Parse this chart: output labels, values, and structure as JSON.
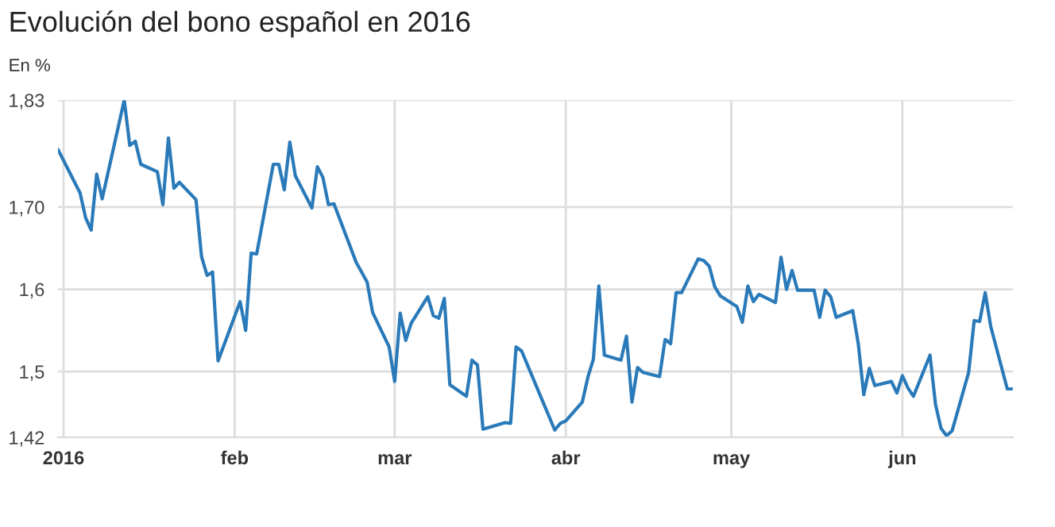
{
  "chart_data": {
    "type": "line",
    "title": "Evolución del bono español en 2016",
    "ylabel": "En %",
    "x": [
      "2015-12-31",
      "2016-01-04",
      "2016-01-05",
      "2016-01-06",
      "2016-01-07",
      "2016-01-08",
      "2016-01-12",
      "2016-01-13",
      "2016-01-14",
      "2016-01-15",
      "2016-01-18",
      "2016-01-19",
      "2016-01-20",
      "2016-01-21",
      "2016-01-22",
      "2016-01-25",
      "2016-01-26",
      "2016-01-27",
      "2016-01-28",
      "2016-01-29",
      "2016-02-02",
      "2016-02-03",
      "2016-02-04",
      "2016-02-05",
      "2016-02-08",
      "2016-02-09",
      "2016-02-10",
      "2016-02-11",
      "2016-02-12",
      "2016-02-15",
      "2016-02-16",
      "2016-02-17",
      "2016-02-18",
      "2016-02-19",
      "2016-02-22",
      "2016-02-23",
      "2016-02-24",
      "2016-02-25",
      "2016-02-26",
      "2016-02-29",
      "2016-03-01",
      "2016-03-02",
      "2016-03-03",
      "2016-03-04",
      "2016-03-07",
      "2016-03-08",
      "2016-03-09",
      "2016-03-10",
      "2016-03-11",
      "2016-03-14",
      "2016-03-15",
      "2016-03-16",
      "2016-03-17",
      "2016-03-21",
      "2016-03-22",
      "2016-03-23",
      "2016-03-24",
      "2016-03-30",
      "2016-03-31",
      "2016-04-01",
      "2016-04-04",
      "2016-04-05",
      "2016-04-06",
      "2016-04-07",
      "2016-04-08",
      "2016-04-11",
      "2016-04-12",
      "2016-04-13",
      "2016-04-14",
      "2016-04-15",
      "2016-04-18",
      "2016-04-19",
      "2016-04-20",
      "2016-04-21",
      "2016-04-22",
      "2016-04-25",
      "2016-04-26",
      "2016-04-27",
      "2016-04-28",
      "2016-04-29",
      "2016-05-02",
      "2016-05-03",
      "2016-05-04",
      "2016-05-05",
      "2016-05-06",
      "2016-05-09",
      "2016-05-10",
      "2016-05-11",
      "2016-05-12",
      "2016-05-13",
      "2016-05-16",
      "2016-05-17",
      "2016-05-18",
      "2016-05-19",
      "2016-05-20",
      "2016-05-23",
      "2016-05-24",
      "2016-05-25",
      "2016-05-26",
      "2016-05-27",
      "2016-05-30",
      "2016-05-31",
      "2016-06-01",
      "2016-06-02",
      "2016-06-03",
      "2016-06-06",
      "2016-06-07",
      "2016-06-08",
      "2016-06-09",
      "2016-06-10",
      "2016-06-13",
      "2016-06-14",
      "2016-06-15",
      "2016-06-16",
      "2016-06-17",
      "2016-06-20",
      "2016-06-21"
    ],
    "series": [
      {
        "color": "#2a7ab9",
        "values": [
          1.77,
          1.717,
          1.687,
          1.672,
          1.74,
          1.71,
          1.83,
          1.775,
          1.78,
          1.752,
          1.743,
          1.703,
          1.784,
          1.723,
          1.73,
          1.709,
          1.64,
          1.617,
          1.621,
          1.513,
          1.585,
          1.55,
          1.644,
          1.643,
          1.752,
          1.752,
          1.721,
          1.779,
          1.738,
          1.699,
          1.749,
          1.736,
          1.703,
          1.704,
          1.651,
          1.633,
          1.621,
          1.609,
          1.572,
          1.53,
          1.488,
          1.571,
          1.538,
          1.559,
          1.591,
          1.568,
          1.565,
          1.589,
          1.484,
          1.47,
          1.514,
          1.508,
          1.43,
          1.438,
          1.437,
          1.53,
          1.525,
          1.429,
          1.437,
          1.44,
          1.463,
          1.493,
          1.515,
          1.604,
          1.52,
          1.514,
          1.543,
          1.463,
          1.505,
          1.499,
          1.494,
          1.539,
          1.534,
          1.596,
          1.596,
          1.637,
          1.635,
          1.628,
          1.603,
          1.592,
          1.579,
          1.56,
          1.604,
          1.585,
          1.594,
          1.584,
          1.639,
          1.6,
          1.623,
          1.599,
          1.599,
          1.566,
          1.599,
          1.591,
          1.566,
          1.574,
          1.534,
          1.472,
          1.504,
          1.483,
          1.488,
          1.474,
          1.495,
          1.48,
          1.47,
          1.52,
          1.46,
          1.431,
          1.422,
          1.428,
          1.499,
          1.562,
          1.561,
          1.596,
          1.555,
          1.479,
          1.479
        ]
      }
    ],
    "xlim": [
      "2015-12-31",
      "2016-06-21"
    ],
    "xticks": [
      {
        "value": "2016-01-01",
        "label": "2016"
      },
      {
        "value": "2016-02-01",
        "label": "feb"
      },
      {
        "value": "2016-03-01",
        "label": "mar"
      },
      {
        "value": "2016-04-01",
        "label": "abr"
      },
      {
        "value": "2016-05-01",
        "label": "may"
      },
      {
        "value": "2016-06-01",
        "label": "jun"
      }
    ],
    "ylim": [
      1.42,
      1.83
    ],
    "yticks": [
      {
        "value": 1.42,
        "label": "1,42"
      },
      {
        "value": 1.5,
        "label": "1,5"
      },
      {
        "value": 1.6,
        "label": "1,6"
      },
      {
        "value": 1.7,
        "label": "1,70"
      },
      {
        "value": 1.83,
        "label": "1,83"
      }
    ],
    "grid": true,
    "legend": false,
    "marker": "none",
    "line_style": "solid"
  }
}
